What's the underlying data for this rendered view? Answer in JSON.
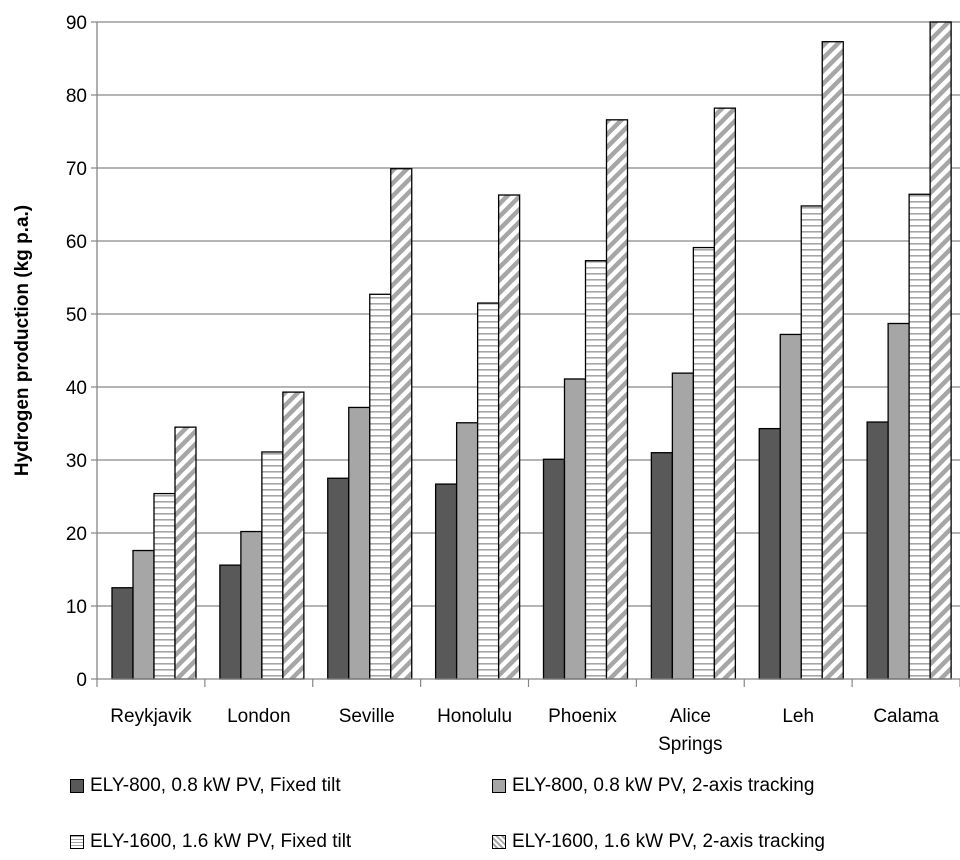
{
  "chart_data": {
    "type": "bar",
    "title": "",
    "xlabel": "",
    "ylabel": "Hydrogen production (kg p.a.)",
    "ylim": [
      0,
      90
    ],
    "yticks": [
      0,
      10,
      20,
      30,
      40,
      50,
      60,
      70,
      80,
      90
    ],
    "grid": true,
    "legend_position": "bottom",
    "categories": [
      [
        "Reykjavik"
      ],
      [
        "London"
      ],
      [
        "Seville"
      ],
      [
        "Honolulu"
      ],
      [
        "Phoenix"
      ],
      [
        "Alice",
        "Springs"
      ],
      [
        "Leh"
      ],
      [
        "Calama"
      ]
    ],
    "series": [
      {
        "name": "ELY-800, 0.8 kW PV, Fixed tilt",
        "style": "solid",
        "color": "#595959",
        "values": [
          12.5,
          15.6,
          27.5,
          26.7,
          30.1,
          31.0,
          34.3,
          35.2
        ]
      },
      {
        "name": "ELY-800, 0.8 kW PV, 2-axis tracking",
        "style": "solid",
        "color": "#a6a6a6",
        "values": [
          17.6,
          20.2,
          37.2,
          35.1,
          41.1,
          41.9,
          47.2,
          48.7
        ]
      },
      {
        "name": "ELY-1600, 1.6 kW PV, Fixed tilt",
        "style": "horizontal-stripes",
        "color": "#ffffff",
        "values": [
          25.4,
          31.1,
          52.7,
          51.5,
          57.3,
          59.1,
          64.8,
          66.4
        ]
      },
      {
        "name": "ELY-1600, 1.6 kW PV, 2-axis tracking",
        "style": "diagonal-stripes",
        "color": "#ffffff",
        "values": [
          34.5,
          39.3,
          69.9,
          66.3,
          76.6,
          78.2,
          87.3,
          90.0
        ]
      }
    ]
  },
  "colors": {
    "dark_bar": "#595959",
    "light_bar": "#a6a6a6",
    "stripe": "#a6a6a6",
    "grid": "#868686",
    "axis": "#868686"
  }
}
